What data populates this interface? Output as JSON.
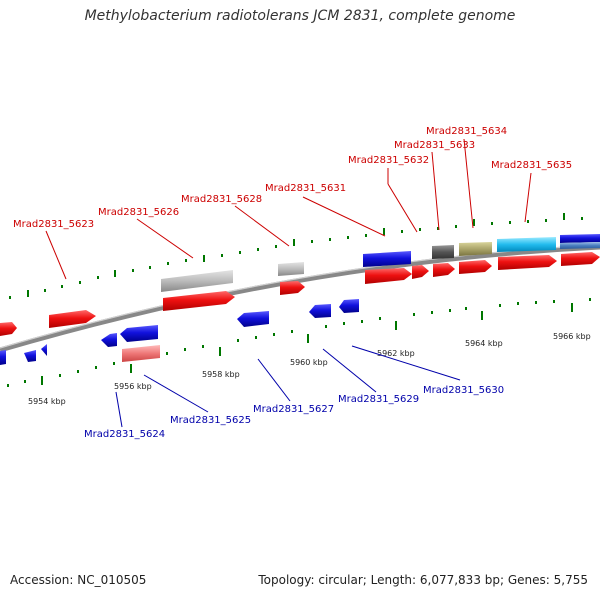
{
  "title": "Methylobacterium radiotolerans JCM 2831, complete genome",
  "footer": {
    "accession": "Accession: NC_010505",
    "summary": "Topology: circular; Length: 6,077,833 bp; Genes: 5,755"
  },
  "axis_labels": [
    "5954 kbp",
    "5956 kbp",
    "5958 kbp",
    "5960 kbp",
    "5962 kbp",
    "5964 kbp",
    "5966 kbp"
  ],
  "gene_labels_top": [
    "Mrad2831_5623",
    "Mrad2831_5626",
    "Mrad2831_5628",
    "Mrad2831_5631",
    "Mrad2831_5632",
    "Mrad2831_5633",
    "Mrad2831_5634",
    "Mrad2831_5635"
  ],
  "gene_labels_bottom": [
    "Mrad2831_5624",
    "Mrad2831_5625",
    "Mrad2831_5627",
    "Mrad2831_5629",
    "Mrad2831_5630"
  ],
  "colors": {
    "forward_label": "#cc0000",
    "reverse_label": "#0000aa",
    "cds_red": "#ee1111",
    "cds_blue": "#1111dd",
    "pseudo_grey": "#bbbbbb",
    "tick_green": "#007700",
    "backbone": "#888888"
  }
}
